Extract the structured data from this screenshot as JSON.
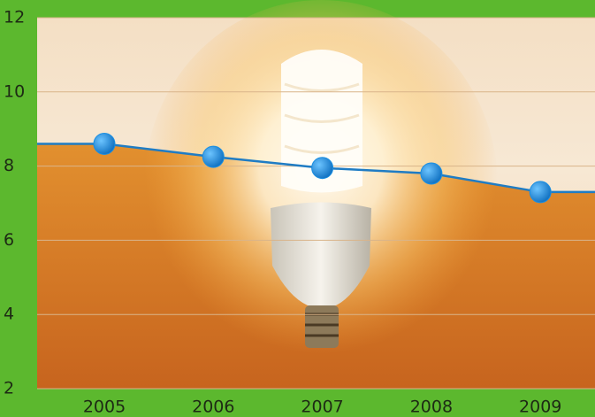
{
  "chart_data": {
    "type": "line",
    "categories": [
      "2005",
      "2006",
      "2007",
      "2008",
      "2009"
    ],
    "values": [
      8.6,
      8.25,
      7.95,
      7.8,
      7.3
    ],
    "color": "#1f7cc4",
    "marker_color": "#1a8fe3",
    "ylim": [
      2,
      12
    ],
    "yticks": [
      2,
      4,
      6,
      8,
      10,
      12
    ],
    "grid": true
  }
}
